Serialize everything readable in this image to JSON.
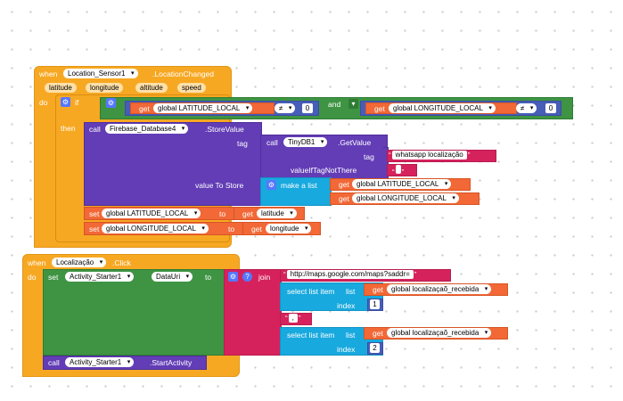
{
  "event1": {
    "when": "when",
    "component": "Location_Sensor1",
    "event": ".LocationChanged",
    "params": [
      "latitude",
      "longitude",
      "altitude",
      "speed"
    ],
    "do": "do"
  },
  "if_block": {
    "if": "if",
    "then": "then",
    "and": "and",
    "neq": "≠",
    "zero1": "0",
    "zero2": "0",
    "get": "get",
    "lat_var": "global LATITUDE_LOCAL",
    "lon_var": "global LONGITUDE_LOCAL"
  },
  "store": {
    "call": "call",
    "component": "Firebase_Database4",
    "method": ".StoreValue",
    "tag": "tag",
    "value_to_store": "value To Store"
  },
  "getval": {
    "call": "call",
    "component": "TinyDB1",
    "method": ".GetValue",
    "tag": "tag",
    "tag_value": "whatsapp localização",
    "value_if_not": "valueIfTagNotThere",
    "empty": "\" \""
  },
  "makelist": {
    "label": "make a list",
    "get": "get",
    "lat": "global LATITUDE_LOCAL",
    "lon": "global LONGITUDE_LOCAL"
  },
  "setlat": {
    "set": "set",
    "var": "global LATITUDE_LOCAL",
    "to": "to",
    "get": "get",
    "param": "latitude"
  },
  "setlon": {
    "set": "set",
    "var": "global LONGITUDE_LOCAL",
    "to": "to",
    "get": "get",
    "param": "longitude"
  },
  "event2": {
    "when": "when",
    "component": "Localização",
    "event": ".Click",
    "do": "do"
  },
  "setdata": {
    "set": "set",
    "component": "Activity_Starter1",
    "prop": "DataUri",
    "to": "to",
    "join": "join",
    "url": "http://maps.google.com/maps?saddr=",
    "select": "select list item",
    "list": "list",
    "get": "get",
    "var": "global localizaçaõ_recebida",
    "index": "index",
    "idx1": "1",
    "comma": ",",
    "idx2": "2"
  },
  "callstart": {
    "call": "call",
    "component": "Activity_Starter1",
    "method": ".StartActivity"
  }
}
